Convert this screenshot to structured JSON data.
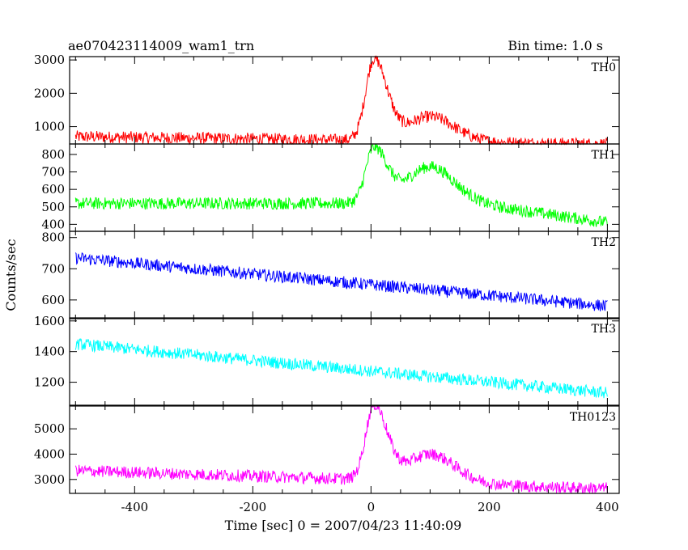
{
  "header": {
    "left_title": "ae070423114009_wam1_trn",
    "right_title": "Bin time: 1.0 s"
  },
  "chart_data": {
    "type": "line",
    "xlabel": "Time [sec] 0 = 2007/04/23 11:40:09",
    "ylabel": "Counts/sec",
    "xlim": [
      -510,
      420
    ],
    "x_ticks": [
      -400,
      -200,
      0,
      200,
      400
    ],
    "bin_time_s": 1.0,
    "panels": [
      {
        "name": "TH0",
        "color": "#ff0000",
        "ylim": [
          480,
          3100
        ],
        "y_ticks": [
          1000,
          2000,
          3000
        ],
        "baseline_start": 700,
        "baseline_end": 500,
        "peak1": {
          "t": 5,
          "value": 3000
        },
        "peak2": {
          "t": 100,
          "value": 1300
        },
        "end_value": 480
      },
      {
        "name": "TH1",
        "color": "#00ff00",
        "ylim": [
          360,
          860
        ],
        "y_ticks": [
          400,
          500,
          600,
          700,
          800
        ],
        "baseline_start": 520,
        "baseline_end": 520,
        "peak1": {
          "t": 5,
          "value": 830
        },
        "peak2": {
          "t": 100,
          "value": 730
        },
        "end_value": 410
      },
      {
        "name": "TH2",
        "color": "#0000ff",
        "ylim": [
          540,
          820
        ],
        "y_ticks": [
          600,
          700,
          800
        ],
        "baseline_start": 735,
        "baseline_end": 580,
        "peak1": null,
        "peak2": null,
        "end_value": 580
      },
      {
        "name": "TH3",
        "color": "#00ffff",
        "ylim": [
          1050,
          1620
        ],
        "y_ticks": [
          1200,
          1400,
          1600
        ],
        "baseline_start": 1450,
        "baseline_end": 1130,
        "peak1": null,
        "peak2": null,
        "end_value": 1130
      },
      {
        "name": "TH0123",
        "color": "#ff00ff",
        "ylim": [
          2450,
          5900
        ],
        "y_ticks": [
          3000,
          4000,
          5000
        ],
        "baseline_start": 3350,
        "baseline_end": 2700,
        "peak1": {
          "t": 5,
          "value": 5900
        },
        "peak2": {
          "t": 100,
          "value": 4000
        },
        "end_value": 2650
      }
    ]
  }
}
